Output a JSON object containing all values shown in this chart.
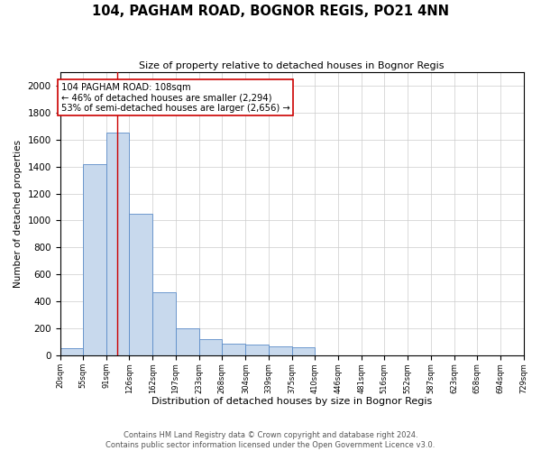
{
  "title_line1": "104, PAGHAM ROAD, BOGNOR REGIS, PO21 4NN",
  "title_line2": "Size of property relative to detached houses in Bognor Regis",
  "xlabel": "Distribution of detached houses by size in Bognor Regis",
  "ylabel": "Number of detached properties",
  "footer_line1": "Contains HM Land Registry data © Crown copyright and database right 2024.",
  "footer_line2": "Contains public sector information licensed under the Open Government Licence v3.0.",
  "bins": [
    20,
    55,
    91,
    126,
    162,
    197,
    233,
    268,
    304,
    339,
    375,
    410,
    446,
    481,
    516,
    552,
    587,
    623,
    658,
    694,
    729
  ],
  "bar_values": [
    55,
    1420,
    1650,
    1050,
    470,
    200,
    120,
    90,
    80,
    70,
    65,
    0,
    0,
    0,
    0,
    0,
    0,
    0,
    0,
    0
  ],
  "bar_color": "#c8d9ed",
  "bar_edge_color": "#5b8cc8",
  "vline_x": 108,
  "vline_color": "#cc0000",
  "annotation_text": "104 PAGHAM ROAD: 108sqm\n← 46% of detached houses are smaller (2,294)\n53% of semi-detached houses are larger (2,656) →",
  "annotation_box_edge": "#cc0000",
  "annotation_box_face": "#ffffff",
  "ylim": [
    0,
    2100
  ],
  "yticks": [
    0,
    200,
    400,
    600,
    800,
    1000,
    1200,
    1400,
    1600,
    1800,
    2000
  ],
  "background_color": "#ffffff",
  "grid_color": "#cccccc",
  "figsize": [
    6.0,
    5.0
  ],
  "dpi": 100
}
